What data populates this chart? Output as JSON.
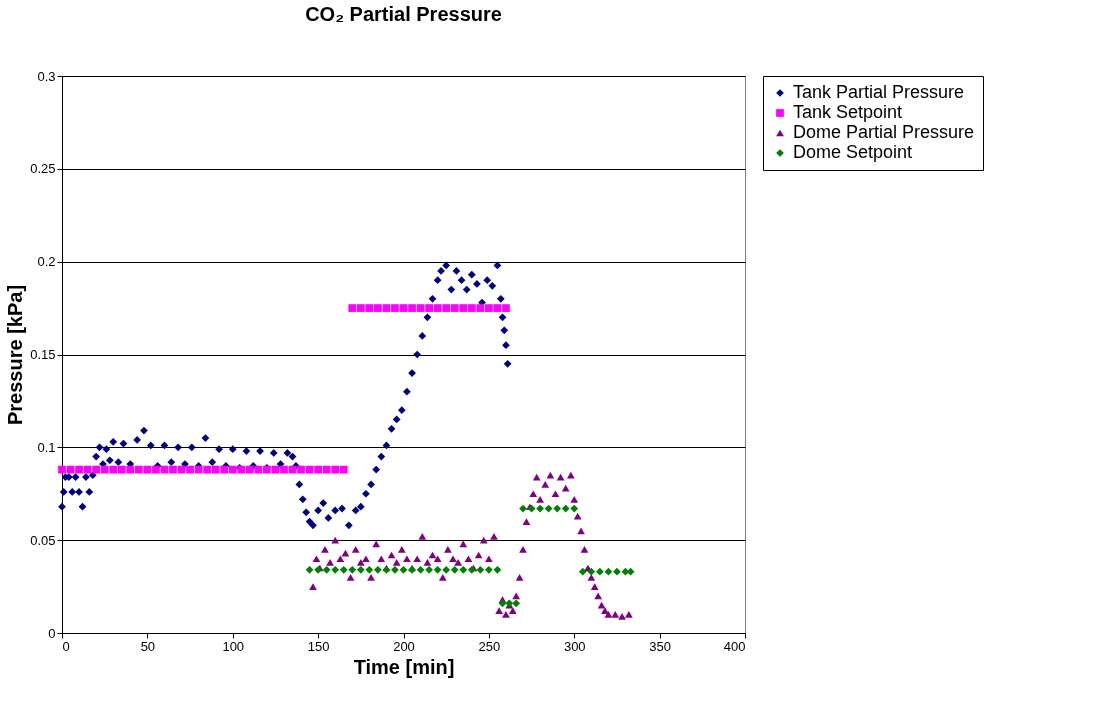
{
  "chart_data": {
    "type": "scatter",
    "title": "CO₂ Partial Pressure",
    "xlabel": "Time [min]",
    "ylabel": "Pressure [kPa]",
    "xlim": [
      0,
      400
    ],
    "xticks": [
      0,
      50,
      100,
      150,
      200,
      250,
      300,
      350,
      400
    ],
    "ylim": [
      0,
      0.3
    ],
    "yticks": [
      0,
      0.05,
      0.1,
      0.15,
      0.2,
      0.25,
      0.3
    ],
    "grid": "y",
    "legend": "right",
    "series": [
      {
        "name": "Tank Partial Pressure",
        "color": "#000080",
        "marker": "diamond",
        "x": [
          0,
          1,
          2,
          4,
          6,
          8,
          10,
          12,
          14,
          16,
          18,
          20,
          22,
          24,
          26,
          28,
          30,
          33,
          36,
          40,
          44,
          48,
          52,
          56,
          60,
          64,
          68,
          72,
          76,
          80,
          84,
          88,
          92,
          96,
          100,
          104,
          108,
          112,
          116,
          120,
          124,
          128,
          132,
          135,
          137,
          139,
          141,
          143,
          145,
          147,
          150,
          153,
          156,
          160,
          164,
          168,
          172,
          175,
          178,
          181,
          184,
          187,
          190,
          193,
          196,
          199,
          202,
          205,
          208,
          211,
          214,
          217,
          220,
          222,
          225,
          228,
          231,
          234,
          237,
          240,
          243,
          246,
          249,
          252,
          255,
          257,
          258,
          259,
          260,
          261
        ],
        "values": [
          0.068,
          0.076,
          0.084,
          0.084,
          0.076,
          0.084,
          0.076,
          0.068,
          0.084,
          0.076,
          0.085,
          0.095,
          0.1,
          0.091,
          0.099,
          0.093,
          0.103,
          0.092,
          0.102,
          0.091,
          0.104,
          0.109,
          0.101,
          0.09,
          0.101,
          0.092,
          0.1,
          0.091,
          0.1,
          0.09,
          0.105,
          0.092,
          0.099,
          0.09,
          0.099,
          0.089,
          0.098,
          0.09,
          0.098,
          0.089,
          0.097,
          0.091,
          0.097,
          0.095,
          0.09,
          0.08,
          0.072,
          0.065,
          0.06,
          0.058,
          0.066,
          0.07,
          0.062,
          0.066,
          0.067,
          0.058,
          0.066,
          0.068,
          0.075,
          0.08,
          0.088,
          0.095,
          0.101,
          0.11,
          0.115,
          0.12,
          0.13,
          0.14,
          0.15,
          0.16,
          0.17,
          0.18,
          0.19,
          0.195,
          0.198,
          0.185,
          0.195,
          0.19,
          0.185,
          0.193,
          0.188,
          0.178,
          0.19,
          0.187,
          0.198,
          0.18,
          0.17,
          0.163,
          0.155,
          0.145
        ]
      },
      {
        "name": "Tank Setpoint",
        "color": "#ff00ff",
        "marker": "square",
        "x": [
          0,
          5,
          10,
          15,
          20,
          25,
          30,
          35,
          40,
          45,
          50,
          55,
          60,
          65,
          70,
          75,
          80,
          85,
          90,
          95,
          100,
          105,
          110,
          115,
          120,
          125,
          130,
          135,
          140,
          145,
          150,
          155,
          160,
          165,
          170,
          175,
          180,
          185,
          190,
          195,
          200,
          205,
          210,
          215,
          220,
          225,
          230,
          235,
          240,
          245,
          250,
          255,
          260
        ],
        "values": [
          0.088,
          0.088,
          0.088,
          0.088,
          0.088,
          0.088,
          0.088,
          0.088,
          0.088,
          0.088,
          0.088,
          0.088,
          0.088,
          0.088,
          0.088,
          0.088,
          0.088,
          0.088,
          0.088,
          0.088,
          0.088,
          0.088,
          0.088,
          0.088,
          0.088,
          0.088,
          0.088,
          0.088,
          0.088,
          0.088,
          0.088,
          0.088,
          0.088,
          0.088,
          0.175,
          0.175,
          0.175,
          0.175,
          0.175,
          0.175,
          0.175,
          0.175,
          0.175,
          0.175,
          0.175,
          0.175,
          0.175,
          0.175,
          0.175,
          0.175,
          0.175,
          0.175,
          0.175
        ]
      },
      {
        "name": "Dome Partial Pressure",
        "color": "#800080",
        "marker": "triangle",
        "x": [
          147,
          149,
          151,
          154,
          157,
          160,
          163,
          166,
          169,
          172,
          175,
          178,
          181,
          184,
          187,
          190,
          193,
          196,
          199,
          202,
          205,
          208,
          211,
          214,
          217,
          220,
          223,
          226,
          229,
          232,
          235,
          238,
          241,
          244,
          247,
          250,
          253,
          256,
          258,
          260,
          262,
          264,
          266,
          268,
          270,
          272,
          274,
          276,
          278,
          280,
          283,
          286,
          289,
          292,
          295,
          298,
          300,
          302,
          304,
          306,
          308,
          310,
          312,
          314,
          316,
          318,
          320,
          324,
          328,
          332
        ],
        "values": [
          0.025,
          0.04,
          0.035,
          0.045,
          0.038,
          0.05,
          0.04,
          0.043,
          0.03,
          0.045,
          0.038,
          0.04,
          0.03,
          0.048,
          0.04,
          0.035,
          0.042,
          0.038,
          0.045,
          0.04,
          0.035,
          0.04,
          0.052,
          0.038,
          0.042,
          0.04,
          0.03,
          0.045,
          0.04,
          0.038,
          0.048,
          0.04,
          0.035,
          0.042,
          0.05,
          0.04,
          0.052,
          0.012,
          0.018,
          0.01,
          0.015,
          0.012,
          0.02,
          0.03,
          0.045,
          0.06,
          0.068,
          0.075,
          0.084,
          0.072,
          0.08,
          0.085,
          0.075,
          0.084,
          0.078,
          0.085,
          0.072,
          0.063,
          0.055,
          0.045,
          0.035,
          0.03,
          0.025,
          0.02,
          0.015,
          0.012,
          0.01,
          0.01,
          0.009,
          0.01
        ]
      },
      {
        "name": "Dome Setpoint",
        "color": "#008000",
        "marker": "diamond",
        "x": [
          145,
          150,
          155,
          160,
          165,
          170,
          175,
          180,
          185,
          190,
          195,
          200,
          205,
          210,
          215,
          220,
          225,
          230,
          235,
          240,
          245,
          250,
          255,
          258,
          262,
          266,
          270,
          275,
          280,
          285,
          290,
          295,
          300,
          305,
          310,
          315,
          320,
          325,
          330,
          333
        ],
        "values": [
          0.034,
          0.034,
          0.034,
          0.034,
          0.034,
          0.034,
          0.034,
          0.034,
          0.034,
          0.034,
          0.034,
          0.034,
          0.034,
          0.034,
          0.034,
          0.034,
          0.034,
          0.034,
          0.034,
          0.034,
          0.034,
          0.034,
          0.034,
          0.016,
          0.016,
          0.016,
          0.067,
          0.067,
          0.067,
          0.067,
          0.067,
          0.067,
          0.067,
          0.033,
          0.033,
          0.033,
          0.033,
          0.033,
          0.033,
          0.033
        ]
      }
    ]
  }
}
